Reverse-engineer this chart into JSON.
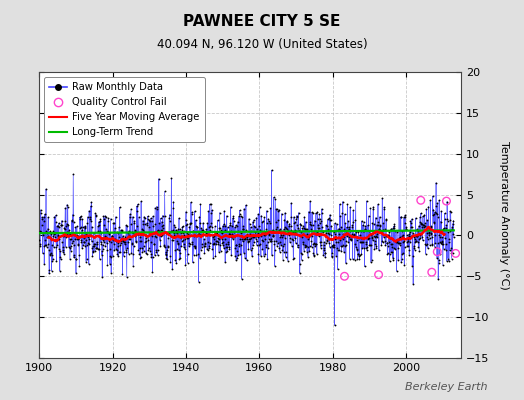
{
  "title": "PAWNEE CITY 5 SE",
  "subtitle": "40.094 N, 96.120 W (United States)",
  "watermark": "Berkeley Earth",
  "ylabel": "Temperature Anomaly (°C)",
  "xlim": [
    1900,
    2015
  ],
  "ylim": [
    -15,
    20
  ],
  "yticks": [
    -15,
    -10,
    -5,
    0,
    5,
    10,
    15,
    20
  ],
  "xticks": [
    1900,
    1920,
    1940,
    1960,
    1980,
    2000
  ],
  "background_color": "#e0e0e0",
  "plot_bg_color": "#ffffff",
  "grid_color": "#bbbbbb",
  "raw_line_color": "#4444ff",
  "raw_dot_color": "#000000",
  "moving_avg_color": "#ff0000",
  "trend_color": "#00bb00",
  "qc_fail_color": "#ff44cc",
  "seed": 12345,
  "qc_fail_points": [
    {
      "year": 1983.2,
      "value": -5.0
    },
    {
      "year": 1992.5,
      "value": -4.8
    },
    {
      "year": 2004.0,
      "value": 4.3
    },
    {
      "year": 2007.0,
      "value": -4.5
    },
    {
      "year": 2008.5,
      "value": -2.0
    },
    {
      "year": 2011.0,
      "value": 4.2
    },
    {
      "year": 2013.5,
      "value": -2.2
    }
  ]
}
